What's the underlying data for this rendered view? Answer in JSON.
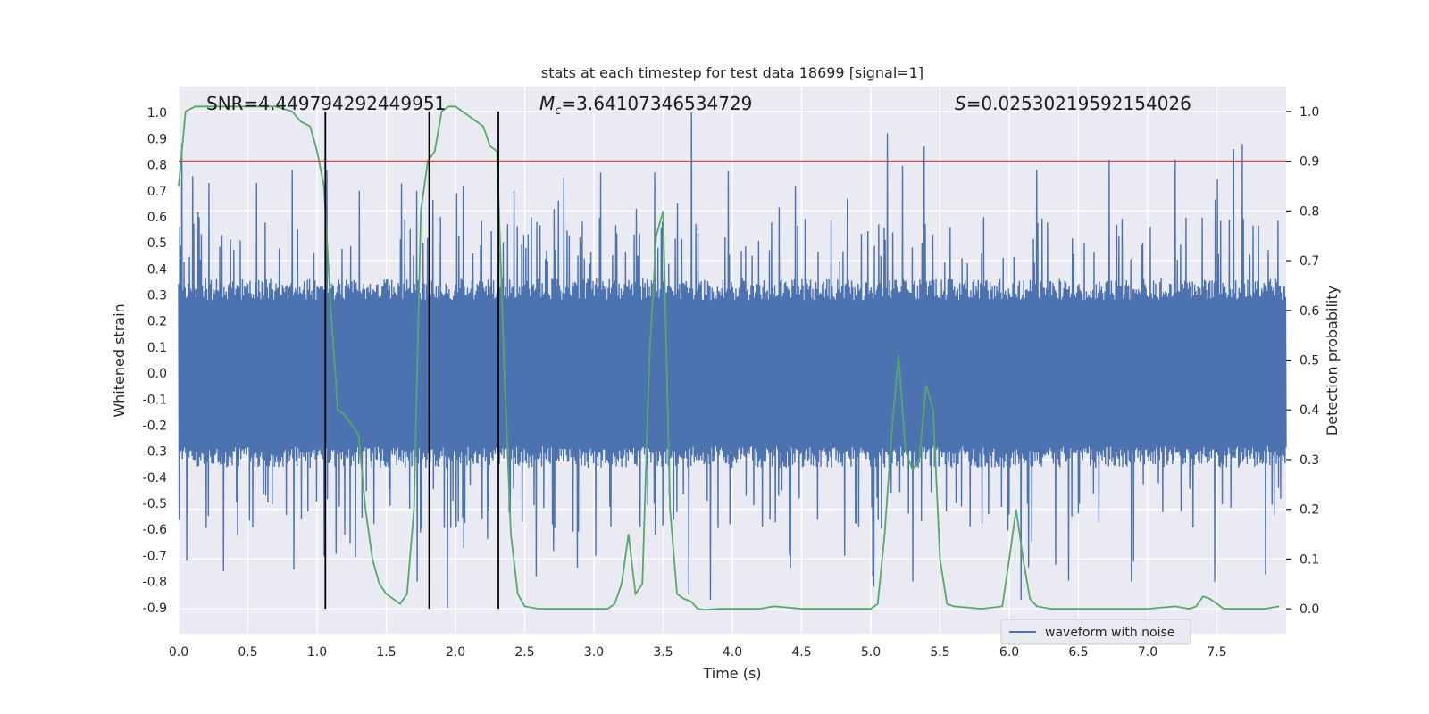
{
  "chart_data": {
    "type": "line",
    "title": "stats at each timestep for test data 18699 [signal=1]",
    "xlabel": "Time (s)",
    "ylabel": "Whitened strain",
    "y2label": "Detection probability",
    "xlim": [
      0,
      8.0
    ],
    "ylim": [
      -1.0,
      1.1
    ],
    "y2lim": [
      -0.05,
      1.05
    ],
    "xticks": [
      "0.0",
      "0.5",
      "1.0",
      "1.5",
      "2.0",
      "2.5",
      "3.0",
      "3.5",
      "4.0",
      "4.5",
      "5.0",
      "5.5",
      "6.0",
      "6.5",
      "7.0",
      "7.5"
    ],
    "yticks": [
      "-0.9",
      "-0.8",
      "-0.7",
      "-0.6",
      "-0.5",
      "-0.4",
      "-0.3",
      "-0.2",
      "-0.1",
      "0.0",
      "0.1",
      "0.2",
      "0.3",
      "0.4",
      "0.5",
      "0.6",
      "0.7",
      "0.8",
      "0.9",
      "1.0"
    ],
    "y2ticks": [
      "0.0",
      "0.1",
      "0.2",
      "0.3",
      "0.4",
      "0.5",
      "0.6",
      "0.7",
      "0.8",
      "0.9",
      "1.0"
    ],
    "grid": true,
    "legend_placement": "lower-right",
    "annotations": {
      "snr": "SNR=4.449794292449951",
      "mc_sym": "M",
      "mc_sub": "c",
      "mc_val": "=3.64107346534729",
      "s_sym": "S",
      "s_val": "=0.02530219592154026"
    },
    "threshold": {
      "y2": 0.9,
      "color": "#c44e52"
    },
    "vlines_x": [
      1.06,
      1.81,
      2.31
    ],
    "waveform": {
      "name": "waveform with noise",
      "color": "#4c72b0",
      "core_amplitude": 0.33,
      "n_samples": 2048,
      "peaks": [
        {
          "x": 0.02,
          "y": 0.88
        },
        {
          "x": 0.14,
          "y": 0.62
        },
        {
          "x": 0.22,
          "y": 0.73
        },
        {
          "x": 0.56,
          "y": 0.73
        },
        {
          "x": 0.82,
          "y": 0.78
        },
        {
          "x": 1.3,
          "y": 0.7
        },
        {
          "x": 1.72,
          "y": 0.7
        },
        {
          "x": 2.05,
          "y": 0.72
        },
        {
          "x": 2.42,
          "y": 0.7
        },
        {
          "x": 2.78,
          "y": 0.75
        },
        {
          "x": 3.05,
          "y": 0.77
        },
        {
          "x": 3.44,
          "y": 0.77
        },
        {
          "x": 3.7,
          "y": 1.0
        },
        {
          "x": 4.45,
          "y": 0.72
        },
        {
          "x": 5.12,
          "y": 0.92
        },
        {
          "x": 5.38,
          "y": 0.87
        },
        {
          "x": 6.2,
          "y": 0.78
        },
        {
          "x": 6.72,
          "y": 0.82
        },
        {
          "x": 7.2,
          "y": 0.82
        },
        {
          "x": 7.62,
          "y": 0.86
        },
        {
          "x": 7.68,
          "y": 0.88
        },
        {
          "x": 0.32,
          "y": -0.76
        },
        {
          "x": 0.06,
          "y": -0.72
        },
        {
          "x": 1.72,
          "y": -0.8
        },
        {
          "x": 1.94,
          "y": -0.9
        },
        {
          "x": 2.58,
          "y": -0.78
        },
        {
          "x": 3.68,
          "y": -0.85
        },
        {
          "x": 3.84,
          "y": -0.87
        },
        {
          "x": 5.02,
          "y": -0.82
        },
        {
          "x": 5.3,
          "y": -0.8
        },
        {
          "x": 6.08,
          "y": -0.87
        },
        {
          "x": 6.88,
          "y": -0.8
        },
        {
          "x": 7.48,
          "y": -0.8
        }
      ]
    },
    "probability": {
      "color": "#55a868",
      "x": [
        0.0,
        0.05,
        0.12,
        0.2,
        0.3,
        0.5,
        0.7,
        0.82,
        0.88,
        0.95,
        1.0,
        1.05,
        1.1,
        1.15,
        1.2,
        1.25,
        1.3,
        1.35,
        1.4,
        1.45,
        1.5,
        1.55,
        1.6,
        1.65,
        1.7,
        1.75,
        1.8,
        1.85,
        1.9,
        1.95,
        2.0,
        2.05,
        2.1,
        2.15,
        2.2,
        2.25,
        2.3,
        2.35,
        2.4,
        2.45,
        2.5,
        2.6,
        2.8,
        3.0,
        3.1,
        3.15,
        3.2,
        3.25,
        3.3,
        3.35,
        3.4,
        3.45,
        3.5,
        3.55,
        3.6,
        3.65,
        3.7,
        3.75,
        3.8,
        3.9,
        4.0,
        4.2,
        4.3,
        4.5,
        4.8,
        5.0,
        5.05,
        5.1,
        5.15,
        5.2,
        5.25,
        5.3,
        5.35,
        5.4,
        5.45,
        5.5,
        5.55,
        5.6,
        5.8,
        5.95,
        6.0,
        6.05,
        6.1,
        6.15,
        6.2,
        6.3,
        6.5,
        6.8,
        7.0,
        7.2,
        7.3,
        7.35,
        7.4,
        7.45,
        7.5,
        7.55,
        7.6,
        7.7,
        7.85,
        7.95
      ],
      "y": [
        0.85,
        1.0,
        1.01,
        1.01,
        1.01,
        1.01,
        1.01,
        1.0,
        0.98,
        0.97,
        0.92,
        0.85,
        0.6,
        0.4,
        0.39,
        0.37,
        0.35,
        0.2,
        0.1,
        0.05,
        0.03,
        0.02,
        0.01,
        0.03,
        0.2,
        0.8,
        0.9,
        0.92,
        1.0,
        1.01,
        1.01,
        1.0,
        0.99,
        0.98,
        0.97,
        0.93,
        0.92,
        0.5,
        0.15,
        0.03,
        0.005,
        0.0,
        0.0,
        0.0,
        0.0,
        0.01,
        0.05,
        0.15,
        0.03,
        0.05,
        0.5,
        0.75,
        0.8,
        0.2,
        0.03,
        0.02,
        0.015,
        0.0,
        -0.002,
        0.0,
        0.0,
        0.0,
        0.005,
        0.0,
        0.0,
        0.0,
        0.01,
        0.15,
        0.35,
        0.51,
        0.32,
        0.28,
        0.3,
        0.45,
        0.4,
        0.1,
        0.01,
        0.005,
        0.0,
        0.005,
        0.1,
        0.2,
        0.1,
        0.02,
        0.005,
        0.0,
        0.0,
        0.0,
        0.0,
        0.005,
        0.0,
        0.005,
        0.025,
        0.02,
        0.01,
        0.0,
        0.0,
        0.0,
        0.0,
        0.005
      ]
    }
  }
}
